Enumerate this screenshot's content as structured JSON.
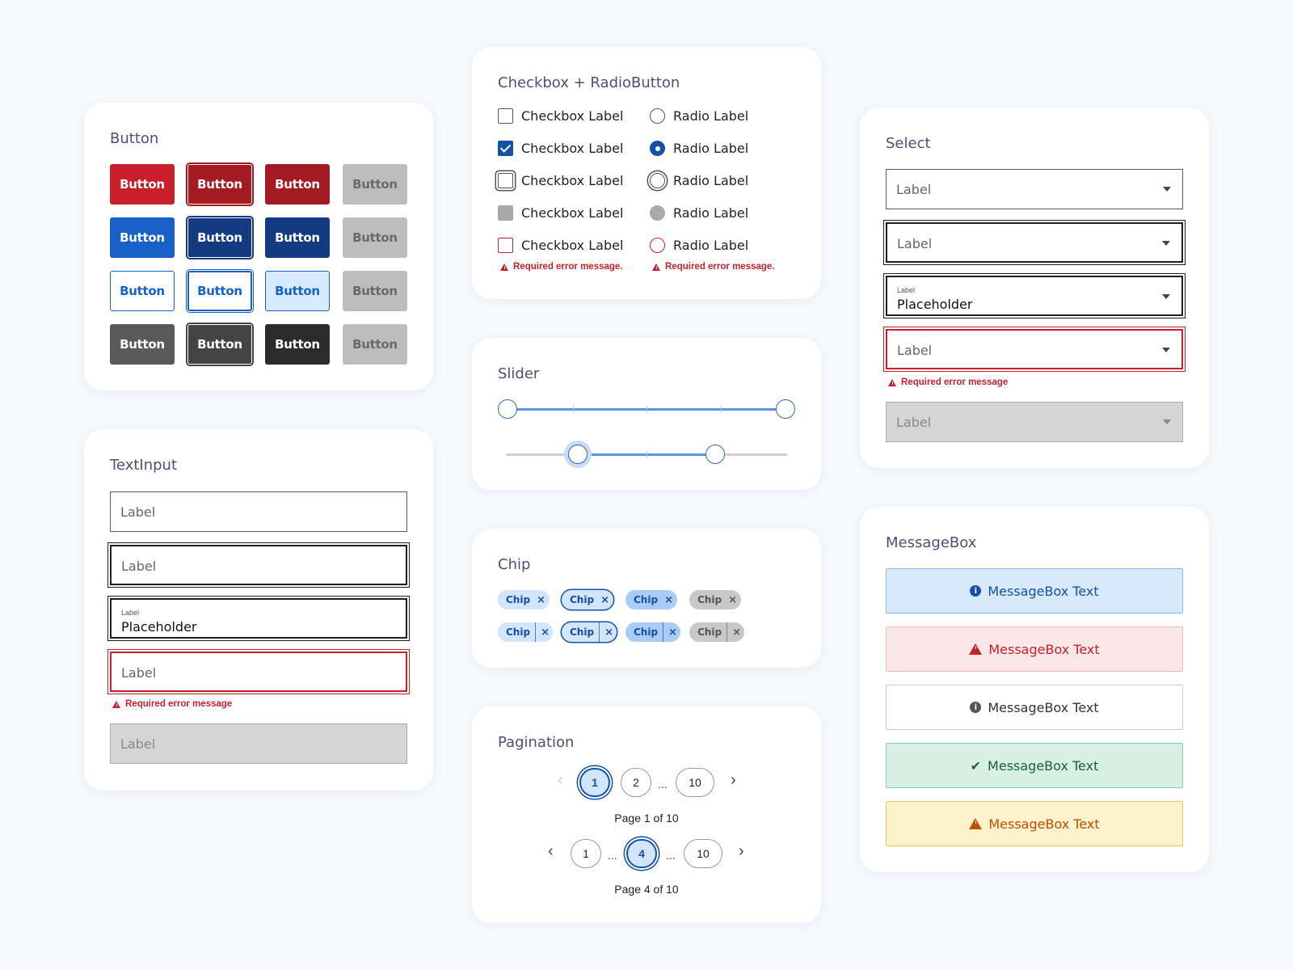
{
  "button_card": {
    "title": "Button",
    "label": "Button"
  },
  "textinput_card": {
    "title": "TextInput",
    "label": "Label",
    "small_label": "Label",
    "placeholder": "Placeholder",
    "error": "Required error message"
  },
  "checkbox_card": {
    "title": "Checkbox + RadioButton",
    "checkbox_label": "Checkbox Label",
    "radio_label": "Radio Label",
    "error": "Required error message."
  },
  "slider_card": {
    "title": "Slider",
    "slider1": {
      "min": 0,
      "max": 100,
      "low": 0,
      "high": 100
    },
    "slider2": {
      "min": 0,
      "max": 100,
      "low": 25,
      "high": 75
    }
  },
  "chip_card": {
    "title": "Chip",
    "label": "Chip",
    "close": "×"
  },
  "pagination_card": {
    "title": "Pagination",
    "row1": {
      "pages": [
        "1",
        "2",
        "10"
      ],
      "ellipsis": "...",
      "caption": "Page 1 of 10"
    },
    "row2": {
      "pages": [
        "1",
        "4",
        "10"
      ],
      "ellipsis": "...",
      "caption": "Page 4 of 10"
    },
    "prev_icon": "‹",
    "next_icon": "›"
  },
  "select_card": {
    "title": "Select",
    "label": "Label",
    "small_label": "Label",
    "placeholder": "Placeholder",
    "error": "Required error message"
  },
  "messagebox_card": {
    "title": "MessageBox",
    "text": "MessageBox Text"
  },
  "colors": {
    "primary_red": "#c8202b",
    "primary_blue": "#1761c9",
    "dark_blue": "#133b81",
    "success": "#1d5e3d",
    "warning": "#c34d00"
  }
}
